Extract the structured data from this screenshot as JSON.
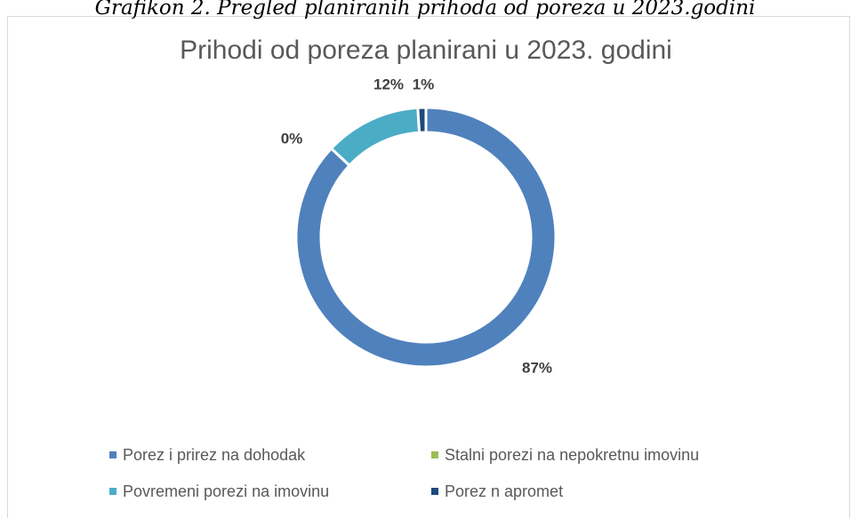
{
  "chart_data": {
    "type": "donut",
    "caption": "Grafikon 2. Pregled planiranih prihoda od poreza u 2023.godini",
    "title": "Prihodi od poreza planirani u 2023. godini",
    "categories": [
      "Porez i prirez na dohodak",
      "Stalni porezi na nepokretnu imovinu",
      "Povremeni porezi na imovinu",
      "Porez n apromet"
    ],
    "values": [
      87,
      0,
      12,
      1
    ],
    "value_labels": [
      "87%",
      "0%",
      "12%",
      "1%"
    ],
    "colors": [
      "#4f81bd",
      "#9bbb59",
      "#4bacc6",
      "#1f497d"
    ],
    "legend": "bottom"
  }
}
